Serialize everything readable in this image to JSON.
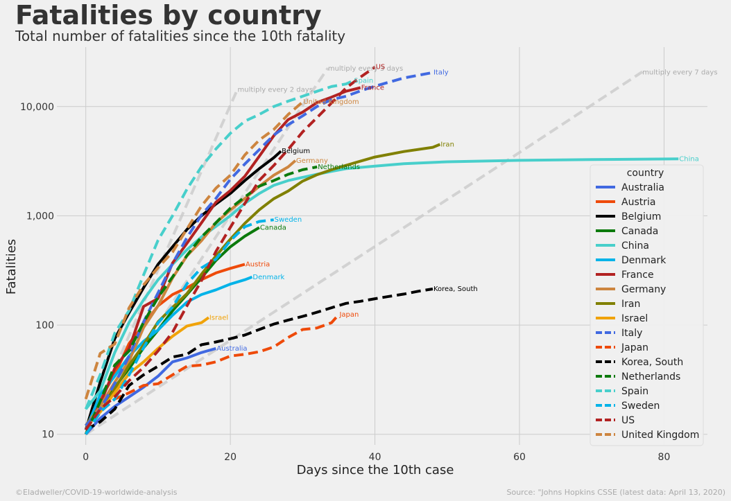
{
  "header": {
    "title": "Fatalities by country",
    "subtitle": "Total number of fatalities since the 10th fatality"
  },
  "footer": {
    "credit": "©Eladweller/COVID-19-worldwide-analysis",
    "source": "Source: \"Johns Hopkins CSSE (latest data: April 13, 2020)"
  },
  "chart_data": {
    "type": "line",
    "title": "Fatalities by country",
    "subtitle": "Total number of fatalities since the 10th fatality",
    "xlabel": "Days since the 10th case",
    "ylabel": "Fatalities",
    "y_scale": "log",
    "xlim": [
      -4,
      86
    ],
    "ylim": [
      8,
      35000
    ],
    "x_ticks": [
      0,
      20,
      40,
      60,
      80
    ],
    "x_tick_labels": [
      "0",
      "20",
      "40",
      "60",
      "80"
    ],
    "y_ticks": [
      10,
      100,
      1000,
      10000
    ],
    "y_tick_labels": [
      "10",
      "100",
      "1,000",
      "10,000"
    ],
    "grid": true,
    "legend": {
      "title": "country",
      "position": "right"
    },
    "background": "#f0f0f0",
    "reference_lines": [
      {
        "label": "multiply every 2 days",
        "color": "#c8c8c8",
        "x": [
          0,
          5,
          10,
          15,
          20,
          21
        ],
        "y": [
          10,
          56.6,
          320,
          1810,
          10240,
          14480
        ]
      },
      {
        "label": "multiply every 3 days",
        "color": "#c8c8c8",
        "x": [
          0,
          10,
          20,
          30,
          33.5
        ],
        "y": [
          10,
          101,
          1016,
          10240,
          22520
        ]
      },
      {
        "label": "multiply every 7 days",
        "color": "#c8c8c8",
        "x": [
          0,
          20,
          40,
          60,
          77
        ],
        "y": [
          10,
          72.4,
          524,
          3795,
          20810
        ]
      }
    ],
    "series": [
      {
        "name": "Australia",
        "color": "#4169e1",
        "style": "solid",
        "x": [
          0,
          2,
          4,
          6,
          8,
          10,
          12,
          14,
          16,
          18
        ],
        "y": [
          10,
          14,
          18,
          22,
          27,
          34,
          46,
          50,
          56,
          61
        ]
      },
      {
        "name": "Austria",
        "color": "#ee4a0a",
        "style": "solid",
        "x": [
          0,
          2,
          4,
          6,
          8,
          10,
          12,
          14,
          16,
          18,
          20,
          22
        ],
        "y": [
          10,
          21,
          35,
          68,
          100,
          150,
          190,
          220,
          260,
          300,
          330,
          360
        ]
      },
      {
        "name": "Belgium",
        "color": "#000000",
        "style": "solid",
        "x": [
          0,
          2,
          4,
          6,
          8,
          10,
          12,
          14,
          16,
          18,
          20,
          22,
          24,
          26,
          27
        ],
        "y": [
          11,
          30,
          75,
          130,
          220,
          360,
          520,
          750,
          1000,
          1280,
          1600,
          2100,
          2700,
          3400,
          3900
        ]
      },
      {
        "name": "Canada",
        "color": "#0c7a0c",
        "style": "solid",
        "x": [
          0,
          2,
          4,
          6,
          8,
          10,
          12,
          14,
          16,
          18,
          20,
          22,
          24
        ],
        "y": [
          12,
          19,
          27,
          40,
          62,
          90,
          135,
          190,
          270,
          390,
          520,
          650,
          780
        ]
      },
      {
        "name": "China",
        "color": "#48cfcb",
        "style": "solid",
        "x": [
          0,
          2,
          4,
          6,
          8,
          10,
          12,
          14,
          16,
          18,
          20,
          22,
          24,
          26,
          28,
          30,
          32,
          34,
          36,
          40,
          44,
          50,
          60,
          70,
          82
        ],
        "y": [
          17,
          25,
          56,
          106,
          170,
          260,
          360,
          490,
          640,
          800,
          1000,
          1300,
          1600,
          1900,
          2100,
          2250,
          2400,
          2550,
          2700,
          2850,
          3000,
          3120,
          3220,
          3270,
          3320
        ]
      },
      {
        "name": "Denmark",
        "color": "#03b3e8",
        "style": "solid",
        "x": [
          0,
          2,
          4,
          6,
          8,
          10,
          12,
          14,
          16,
          18,
          20,
          22,
          23
        ],
        "y": [
          11,
          23,
          34,
          52,
          71,
          90,
          123,
          162,
          190,
          210,
          237,
          260,
          275
        ]
      },
      {
        "name": "France",
        "color": "#b22222",
        "style": "solid",
        "x": [
          0,
          2,
          4,
          6,
          8,
          10,
          12,
          14,
          16,
          18,
          20,
          22,
          24,
          26,
          28,
          30,
          32,
          34,
          36,
          38
        ],
        "y": [
          11,
          19,
          40,
          61,
          148,
          175,
          370,
          560,
          860,
          1330,
          1700,
          2300,
          3500,
          5400,
          7600,
          8900,
          10900,
          12200,
          13800,
          14900
        ]
      },
      {
        "name": "Germany",
        "color": "#cd853f",
        "style": "solid",
        "x": [
          0,
          2,
          4,
          6,
          8,
          10,
          12,
          14,
          16,
          18,
          20,
          22,
          24,
          26,
          28,
          29
        ],
        "y": [
          12,
          18,
          30,
          47,
          95,
          150,
          270,
          430,
          590,
          860,
          1130,
          1440,
          1860,
          2350,
          2800,
          3200
        ]
      },
      {
        "name": "Iran",
        "color": "#808000",
        "style": "solid",
        "x": [
          0,
          2,
          4,
          6,
          8,
          10,
          12,
          14,
          16,
          18,
          20,
          22,
          24,
          26,
          28,
          30,
          32,
          34,
          36,
          38,
          40,
          44,
          48,
          49
        ],
        "y": [
          12,
          16,
          26,
          43,
          66,
          107,
          145,
          194,
          291,
          429,
          611,
          853,
          1135,
          1433,
          1685,
          2077,
          2378,
          2640,
          2898,
          3160,
          3452,
          3872,
          4232,
          4500
        ]
      },
      {
        "name": "Israel",
        "color": "#f0a30a",
        "style": "solid",
        "x": [
          0,
          2,
          4,
          6,
          8,
          10,
          12,
          14,
          16,
          17
        ],
        "y": [
          12,
          16,
          24,
          36,
          46,
          61,
          79,
          98,
          105,
          117
        ]
      },
      {
        "name": "Italy",
        "color": "#4169e1",
        "style": "dashed",
        "x": [
          0,
          2,
          4,
          6,
          8,
          10,
          12,
          14,
          16,
          18,
          20,
          22,
          24,
          26,
          28,
          30,
          32,
          34,
          36,
          38,
          40,
          44,
          48
        ],
        "y": [
          12,
          17,
          29,
          52,
          107,
          197,
          366,
          631,
          1016,
          1441,
          2158,
          2978,
          4032,
          5476,
          6820,
          8215,
          10023,
          11591,
          12428,
          13915,
          15362,
          18279,
          20465
        ]
      },
      {
        "name": "Japan",
        "color": "#ee4a0a",
        "style": "dashed",
        "x": [
          0,
          2,
          4,
          6,
          8,
          10,
          12,
          14,
          16,
          18,
          20,
          22,
          24,
          26,
          28,
          30,
          32,
          34,
          35
        ],
        "y": [
          10,
          16,
          21,
          24,
          28,
          29,
          35,
          42,
          43,
          46,
          52,
          54,
          57,
          63,
          77,
          91,
          94,
          105,
          125
        ]
      },
      {
        "name": "Korea, South",
        "color": "#000000",
        "style": "dashed",
        "x": [
          0,
          2,
          4,
          6,
          8,
          10,
          12,
          14,
          16,
          18,
          20,
          22,
          24,
          26,
          28,
          30,
          32,
          34,
          36,
          38,
          40,
          42,
          44,
          46,
          48
        ],
        "y": [
          11,
          13,
          17,
          28,
          35,
          42,
          51,
          54,
          66,
          70,
          75,
          81,
          91,
          102,
          111,
          120,
          131,
          144,
          158,
          165,
          174,
          183,
          192,
          204,
          214
        ]
      },
      {
        "name": "Netherlands",
        "color": "#0c7a0c",
        "style": "dashed",
        "x": [
          0,
          2,
          4,
          6,
          8,
          10,
          12,
          14,
          16,
          18,
          20,
          22,
          24,
          26,
          28,
          30,
          32
        ],
        "y": [
          10,
          20,
          43,
          58,
          106,
          179,
          276,
          434,
          639,
          864,
          1173,
          1487,
          1867,
          2101,
          2396,
          2643,
          2800
        ]
      },
      {
        "name": "Spain",
        "color": "#48cfcb",
        "style": "dashed",
        "x": [
          0,
          2,
          4,
          6,
          8,
          10,
          12,
          14,
          16,
          18,
          20,
          22,
          24,
          26,
          28,
          30,
          32,
          34,
          36,
          37
        ],
        "y": [
          17,
          35,
          84,
          136,
          288,
          598,
          1002,
          1756,
          2808,
          4089,
          5690,
          7340,
          8464,
          10003,
          11198,
          12418,
          13798,
          15238,
          16081,
          17209
        ]
      },
      {
        "name": "Sweden",
        "color": "#03b3e8",
        "style": "dashed",
        "x": [
          0,
          2,
          4,
          6,
          8,
          10,
          12,
          14,
          16,
          18,
          20,
          22,
          24,
          26
        ],
        "y": [
          10,
          16,
          21,
          35,
          62,
          105,
          146,
          239,
          333,
          401,
          591,
          793,
          887,
          919
        ]
      },
      {
        "name": "US",
        "color": "#b22222",
        "style": "dashed",
        "x": [
          0,
          2,
          4,
          6,
          8,
          10,
          12,
          14,
          16,
          18,
          20,
          22,
          24,
          26,
          28,
          30,
          32,
          34,
          36,
          38,
          40
        ],
        "y": [
          11,
          17,
          22,
          31,
          41,
          58,
          86,
          150,
          255,
          471,
          783,
          1295,
          2110,
          2885,
          4055,
          5863,
          7938,
          10783,
          14795,
          18586,
          23000
        ]
      },
      {
        "name": "United Kingdom",
        "color": "#cd853f",
        "style": "dashed",
        "x": [
          0,
          2,
          4,
          6,
          8,
          10,
          12,
          14,
          16,
          18,
          20,
          22,
          24,
          26,
          28,
          30
        ],
        "y": [
          21,
          55,
          67,
          144,
          233,
          335,
          465,
          759,
          1228,
          1789,
          2352,
          3605,
          4934,
          6159,
          8464,
          11000
        ]
      }
    ],
    "end_labels": [
      {
        "text": "Italy",
        "series": "Italy"
      },
      {
        "text": "US",
        "series": "US"
      },
      {
        "text": "Spain",
        "series": "Spain"
      },
      {
        "text": "France",
        "series": "France"
      },
      {
        "text": "United Kingdom",
        "series": "United Kingdom"
      },
      {
        "text": "Iran",
        "series": "Iran"
      },
      {
        "text": "China",
        "series": "China"
      },
      {
        "text": "Belgium",
        "series": "Belgium"
      },
      {
        "text": "Germany",
        "series": "Germany"
      },
      {
        "text": "Netherlands",
        "series": "Netherlands"
      },
      {
        "text": "Sweden",
        "series": "Sweden"
      },
      {
        "text": "Canada",
        "series": "Canada"
      },
      {
        "text": "Austria",
        "series": "Austria"
      },
      {
        "text": "Denmark",
        "series": "Denmark"
      },
      {
        "text": "Korea, South",
        "series": "Korea, South"
      },
      {
        "text": "Japan",
        "series": "Japan"
      },
      {
        "text": "Israel",
        "series": "Israel"
      },
      {
        "text": "Australia",
        "series": "Australia"
      }
    ]
  }
}
